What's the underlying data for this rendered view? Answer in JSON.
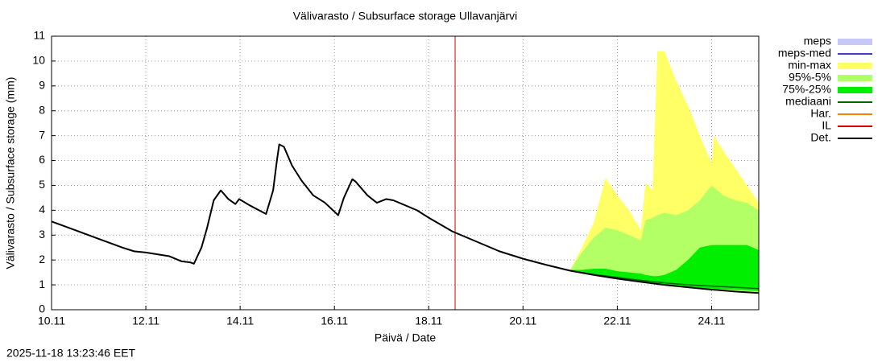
{
  "chart_data": {
    "type": "line",
    "title": "Välivarasto / Subsurface storage  Ullavanjärvi",
    "xlabel": "Päivä / Date",
    "ylabel": "Välivarasto / Subsurface storage (mm)",
    "timestamp": "2025-11-18 13:23:46 EET",
    "xlim": [
      10,
      25
    ],
    "ylim": [
      0,
      11
    ],
    "xticks": [
      {
        "value": 10,
        "label": "10.11"
      },
      {
        "value": 12,
        "label": "12.11"
      },
      {
        "value": 14,
        "label": "14.11"
      },
      {
        "value": 16,
        "label": "16.11"
      },
      {
        "value": 18,
        "label": "18.11"
      },
      {
        "value": 20,
        "label": "20.11"
      },
      {
        "value": 22,
        "label": "22.11"
      },
      {
        "value": 24,
        "label": "24.11"
      }
    ],
    "yticks": [
      0,
      1,
      2,
      3,
      4,
      5,
      6,
      7,
      8,
      9,
      10,
      11
    ],
    "grid": true,
    "forecast_line": {
      "x": 18.56,
      "color": "#cc0000"
    },
    "series": [
      {
        "name": "meps",
        "color": "#c8c8f8",
        "style": "band"
      },
      {
        "name": "meps-med",
        "color": "#4040c0",
        "style": "line"
      },
      {
        "name": "min-max",
        "color": "#ffff66",
        "style": "band",
        "x": [
          21,
          21.25,
          21.5,
          21.75,
          22,
          22.25,
          22.5,
          22.6,
          22.75,
          22.85,
          23,
          23.25,
          23.5,
          23.75,
          24,
          24.05,
          24.25,
          24.5,
          24.75,
          25
        ],
        "high": [
          1.6,
          2.5,
          3.5,
          5.3,
          4.6,
          4.0,
          3.2,
          5.1,
          4.8,
          10.4,
          10.4,
          9.2,
          8.2,
          7.0,
          5.9,
          7.0,
          6.4,
          5.7,
          5.0,
          4.3
        ],
        "low": [
          1.57,
          1.48,
          1.4,
          1.32,
          1.25,
          1.18,
          1.12,
          1.1,
          1.06,
          1.02,
          1.0,
          0.95,
          0.9,
          0.85,
          0.81,
          0.8,
          0.77,
          0.73,
          0.7,
          0.65
        ]
      },
      {
        "name": "95%-5%",
        "color": "#b3ff66",
        "style": "band",
        "x": [
          21,
          21.25,
          21.5,
          21.75,
          22,
          22.25,
          22.5,
          22.6,
          22.75,
          22.85,
          23,
          23.25,
          23.5,
          23.75,
          24,
          24.05,
          24.25,
          24.5,
          24.75,
          25
        ],
        "high": [
          1.6,
          2.3,
          2.9,
          3.3,
          3.2,
          3.0,
          2.8,
          3.6,
          3.7,
          3.8,
          3.9,
          3.8,
          4.0,
          4.4,
          5.0,
          4.9,
          4.6,
          4.4,
          4.3,
          4.0
        ],
        "low": [
          1.57,
          1.48,
          1.4,
          1.32,
          1.25,
          1.18,
          1.12,
          1.1,
          1.06,
          1.03,
          1.0,
          0.95,
          0.9,
          0.86,
          0.82,
          0.81,
          0.78,
          0.74,
          0.71,
          0.68
        ]
      },
      {
        "name": "75%-25%",
        "color": "#00ee00",
        "style": "band",
        "x": [
          21,
          21.25,
          21.5,
          21.75,
          22,
          22.25,
          22.5,
          22.6,
          22.75,
          22.85,
          23,
          23.25,
          23.5,
          23.75,
          24,
          24.05,
          24.25,
          24.5,
          24.75,
          25
        ],
        "high": [
          1.6,
          1.6,
          1.65,
          1.65,
          1.55,
          1.5,
          1.45,
          1.4,
          1.35,
          1.35,
          1.4,
          1.6,
          2.0,
          2.5,
          2.6,
          2.6,
          2.6,
          2.6,
          2.6,
          2.4
        ],
        "low": [
          1.57,
          1.48,
          1.4,
          1.32,
          1.25,
          1.18,
          1.12,
          1.1,
          1.06,
          1.03,
          1.0,
          0.96,
          0.92,
          0.88,
          0.85,
          0.84,
          0.82,
          0.8,
          0.78,
          0.75
        ]
      },
      {
        "name": "mediaani",
        "color": "#006400",
        "style": "line",
        "x": [
          21,
          21.5,
          22,
          22.5,
          23,
          23.5,
          24,
          24.5,
          25
        ],
        "values": [
          1.57,
          1.42,
          1.3,
          1.18,
          1.08,
          1.0,
          0.95,
          0.9,
          0.85
        ]
      },
      {
        "name": "Har.",
        "color": "#ff8000",
        "style": "line"
      },
      {
        "name": "IL",
        "color": "#dd0000",
        "style": "line"
      },
      {
        "name": "Det.",
        "color": "#000000",
        "style": "line",
        "x": [
          10,
          10.5,
          11,
          11.5,
          11.75,
          12,
          12.5,
          12.75,
          12.95,
          13.02,
          13.18,
          13.3,
          13.44,
          13.59,
          13.75,
          13.9,
          13.98,
          14.2,
          14.55,
          14.7,
          14.78,
          14.83,
          14.93,
          15.1,
          15.3,
          15.55,
          15.8,
          16.08,
          16.2,
          16.38,
          16.45,
          16.7,
          16.9,
          17.1,
          17.25,
          17.75,
          18,
          18.5,
          19,
          19.5,
          20,
          20.5,
          21,
          21.5,
          22,
          22.5,
          23,
          23.5,
          24,
          24.5,
          25
        ],
        "values": [
          3.55,
          3.2,
          2.85,
          2.5,
          2.35,
          2.3,
          2.15,
          1.95,
          1.9,
          1.85,
          2.5,
          3.3,
          4.4,
          4.8,
          4.45,
          4.25,
          4.45,
          4.2,
          3.85,
          4.8,
          6.0,
          6.65,
          6.55,
          5.8,
          5.2,
          4.6,
          4.3,
          3.8,
          4.5,
          5.25,
          5.15,
          4.6,
          4.3,
          4.45,
          4.4,
          4.0,
          3.7,
          3.15,
          2.75,
          2.35,
          2.05,
          1.8,
          1.57,
          1.4,
          1.25,
          1.12,
          1.0,
          0.9,
          0.81,
          0.73,
          0.67
        ]
      }
    ]
  }
}
